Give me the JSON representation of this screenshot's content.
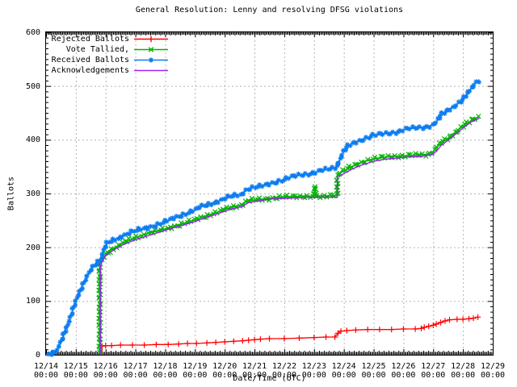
{
  "title": "General Resolution: Lenny and resolving DFSG violations",
  "axes": {
    "x": {
      "label": "Date/Time (UTC)",
      "tick_dates": [
        "12/14",
        "12/15",
        "12/16",
        "12/17",
        "12/18",
        "12/19",
        "12/20",
        "12/21",
        "12/22",
        "12/23",
        "12/24",
        "12/25",
        "12/26",
        "12/27",
        "12/28",
        "12/29"
      ],
      "tick_time": "00:00",
      "min_days": 0,
      "max_days": 15
    },
    "y": {
      "label": "Ballots",
      "ticks": [
        "0",
        "100",
        "200",
        "300",
        "400",
        "500",
        "600"
      ],
      "min": 0,
      "max": 600
    }
  },
  "colors": {
    "background": "#ffffff",
    "axis": "#000000",
    "grid": "#b5b5b5",
    "rejected": "#ff0000",
    "tallied": "#00b400",
    "received": "#0c7cf0",
    "acknowledgements": "#a020f0"
  },
  "legend": [
    {
      "id": "rejected",
      "label": "Rejected Ballots",
      "marker": "plus"
    },
    {
      "id": "tallied",
      "label": "Vote Tallied,",
      "marker": "cross"
    },
    {
      "id": "received",
      "label": "Received Ballots",
      "marker": "star"
    },
    {
      "id": "acknowledgements",
      "label": "Acknowledgements",
      "marker": "none"
    }
  ],
  "chart_data": {
    "type": "line",
    "x_unit": "days since 12/14 00:00 UTC",
    "grid": "dashed, horizontal every 100 ballots, vertical every day",
    "legend_position": "top-left inside plot",
    "series": [
      {
        "id": "rejected",
        "name": "Rejected Ballots",
        "marker": "plus",
        "markers_at_points": true,
        "points": [
          [
            1.88,
            0
          ],
          [
            1.88,
            16
          ],
          [
            2.0,
            17
          ],
          [
            2.2,
            17
          ],
          [
            2.5,
            18
          ],
          [
            2.9,
            18
          ],
          [
            3.3,
            18
          ],
          [
            3.7,
            19
          ],
          [
            4.1,
            19
          ],
          [
            4.45,
            20
          ],
          [
            4.75,
            21
          ],
          [
            5.05,
            21
          ],
          [
            5.4,
            22
          ],
          [
            5.7,
            23
          ],
          [
            6.0,
            24
          ],
          [
            6.3,
            25
          ],
          [
            6.6,
            26
          ],
          [
            6.8,
            27
          ],
          [
            7.0,
            28
          ],
          [
            7.2,
            29
          ],
          [
            7.5,
            30
          ],
          [
            8.0,
            30
          ],
          [
            8.5,
            31
          ],
          [
            9.0,
            32
          ],
          [
            9.4,
            33
          ],
          [
            9.7,
            33
          ],
          [
            9.8,
            40
          ],
          [
            9.9,
            44
          ],
          [
            10.1,
            45
          ],
          [
            10.4,
            46
          ],
          [
            10.8,
            47
          ],
          [
            11.2,
            47
          ],
          [
            11.6,
            47
          ],
          [
            12.0,
            48
          ],
          [
            12.4,
            48
          ],
          [
            12.6,
            49
          ],
          [
            12.7,
            51
          ],
          [
            12.85,
            53
          ],
          [
            13.0,
            55
          ],
          [
            13.1,
            57
          ],
          [
            13.25,
            60
          ],
          [
            13.4,
            63
          ],
          [
            13.55,
            65
          ],
          [
            13.8,
            66
          ],
          [
            14.0,
            66
          ],
          [
            14.2,
            67
          ],
          [
            14.35,
            68
          ],
          [
            14.5,
            70
          ]
        ]
      },
      {
        "id": "tallied",
        "name": "Vote Tallied",
        "marker": "cross",
        "markers_at_points": false,
        "points": [
          [
            1.8,
            0
          ],
          [
            1.8,
            170
          ],
          [
            1.88,
            175
          ],
          [
            1.97,
            183
          ],
          [
            2.07,
            190
          ],
          [
            2.2,
            196
          ],
          [
            2.4,
            202
          ],
          [
            2.6,
            208
          ],
          [
            2.8,
            213
          ],
          [
            3.0,
            218
          ],
          [
            3.2,
            222
          ],
          [
            3.5,
            227
          ],
          [
            3.8,
            231
          ],
          [
            4.0,
            234
          ],
          [
            4.3,
            239
          ],
          [
            4.6,
            244
          ],
          [
            4.9,
            249
          ],
          [
            5.2,
            255
          ],
          [
            5.5,
            261
          ],
          [
            5.8,
            266
          ],
          [
            6.0,
            270
          ],
          [
            6.2,
            274
          ],
          [
            6.4,
            277
          ],
          [
            6.6,
            279
          ],
          [
            6.7,
            285
          ],
          [
            6.9,
            287
          ],
          [
            7.2,
            289
          ],
          [
            7.5,
            291
          ],
          [
            7.8,
            293
          ],
          [
            8.2,
            294
          ],
          [
            8.6,
            295
          ],
          [
            9.0,
            295
          ],
          [
            9.03,
            313
          ],
          [
            9.06,
            295
          ],
          [
            9.4,
            296
          ],
          [
            9.6,
            296
          ],
          [
            9.78,
            296
          ],
          [
            9.78,
            335
          ],
          [
            9.9,
            339
          ],
          [
            10.1,
            345
          ],
          [
            10.3,
            351
          ],
          [
            10.5,
            356
          ],
          [
            10.7,
            360
          ],
          [
            11.0,
            364
          ],
          [
            11.3,
            367
          ],
          [
            11.6,
            369
          ],
          [
            12.0,
            370
          ],
          [
            12.4,
            371
          ],
          [
            12.8,
            373
          ],
          [
            13.0,
            378
          ],
          [
            13.15,
            388
          ],
          [
            13.3,
            395
          ],
          [
            13.5,
            403
          ],
          [
            13.7,
            412
          ],
          [
            13.9,
            421
          ],
          [
            14.1,
            429
          ],
          [
            14.3,
            436
          ],
          [
            14.45,
            441
          ],
          [
            14.55,
            443
          ]
        ]
      },
      {
        "id": "received",
        "name": "Received Ballots",
        "marker": "star",
        "markers_at_points": false,
        "points": [
          [
            0,
            0
          ],
          [
            0.15,
            2
          ],
          [
            0.3,
            6
          ],
          [
            0.45,
            18
          ],
          [
            0.55,
            30
          ],
          [
            0.65,
            45
          ],
          [
            0.75,
            60
          ],
          [
            0.85,
            75
          ],
          [
            1.0,
            100
          ],
          [
            1.15,
            120
          ],
          [
            1.3,
            138
          ],
          [
            1.45,
            152
          ],
          [
            1.6,
            165
          ],
          [
            1.75,
            174
          ],
          [
            1.85,
            180
          ],
          [
            1.95,
            196
          ],
          [
            2.05,
            207
          ],
          [
            2.2,
            212
          ],
          [
            2.4,
            217
          ],
          [
            2.6,
            222
          ],
          [
            2.8,
            226
          ],
          [
            3.0,
            230
          ],
          [
            3.2,
            234
          ],
          [
            3.4,
            237
          ],
          [
            3.7,
            241
          ],
          [
            4.0,
            247
          ],
          [
            4.2,
            252
          ],
          [
            4.5,
            259
          ],
          [
            4.7,
            263
          ],
          [
            5.0,
            269
          ],
          [
            5.2,
            275
          ],
          [
            5.5,
            281
          ],
          [
            5.8,
            286
          ],
          [
            6.0,
            290
          ],
          [
            6.2,
            294
          ],
          [
            6.4,
            297
          ],
          [
            6.6,
            299
          ],
          [
            6.7,
            307
          ],
          [
            6.9,
            310
          ],
          [
            7.2,
            313
          ],
          [
            7.5,
            318
          ],
          [
            7.8,
            323
          ],
          [
            8.0,
            326
          ],
          [
            8.2,
            330
          ],
          [
            8.5,
            334
          ],
          [
            8.8,
            337
          ],
          [
            9.0,
            339
          ],
          [
            9.2,
            342
          ],
          [
            9.5,
            345
          ],
          [
            9.7,
            348
          ],
          [
            9.8,
            355
          ],
          [
            9.9,
            368
          ],
          [
            10.0,
            378
          ],
          [
            10.1,
            386
          ],
          [
            10.25,
            392
          ],
          [
            10.4,
            396
          ],
          [
            10.6,
            400
          ],
          [
            10.8,
            404
          ],
          [
            11.0,
            408
          ],
          [
            11.3,
            411
          ],
          [
            11.6,
            413
          ],
          [
            11.9,
            416
          ],
          [
            12.0,
            419
          ],
          [
            12.3,
            421
          ],
          [
            12.6,
            423
          ],
          [
            12.9,
            426
          ],
          [
            13.0,
            428
          ],
          [
            13.1,
            432
          ],
          [
            13.3,
            448
          ],
          [
            13.5,
            456
          ],
          [
            13.7,
            462
          ],
          [
            13.85,
            468
          ],
          [
            14.0,
            474
          ],
          [
            14.1,
            482
          ],
          [
            14.25,
            494
          ],
          [
            14.4,
            505
          ],
          [
            14.55,
            512
          ]
        ]
      },
      {
        "id": "acknowledgements",
        "name": "Acknowledgements",
        "marker": "none",
        "markers_at_points": false,
        "points": [
          [
            1.83,
            0
          ],
          [
            1.83,
            167
          ],
          [
            2.0,
            185
          ],
          [
            2.3,
            196
          ],
          [
            2.6,
            205
          ],
          [
            3.0,
            214
          ],
          [
            3.4,
            221
          ],
          [
            3.8,
            228
          ],
          [
            4.2,
            235
          ],
          [
            4.6,
            241
          ],
          [
            5.0,
            248
          ],
          [
            5.4,
            256
          ],
          [
            5.8,
            263
          ],
          [
            6.2,
            271
          ],
          [
            6.6,
            276
          ],
          [
            6.8,
            283
          ],
          [
            7.2,
            287
          ],
          [
            7.6,
            290
          ],
          [
            8.0,
            291
          ],
          [
            8.5,
            292
          ],
          [
            9.0,
            293
          ],
          [
            9.5,
            293
          ],
          [
            9.78,
            293
          ],
          [
            9.78,
            331
          ],
          [
            10.0,
            337
          ],
          [
            10.3,
            346
          ],
          [
            10.6,
            353
          ],
          [
            11.0,
            360
          ],
          [
            11.4,
            364
          ],
          [
            11.8,
            366
          ],
          [
            12.2,
            368
          ],
          [
            12.6,
            369
          ],
          [
            13.0,
            373
          ],
          [
            13.15,
            382
          ],
          [
            13.3,
            391
          ],
          [
            13.5,
            399
          ],
          [
            13.7,
            408
          ],
          [
            13.9,
            417
          ],
          [
            14.1,
            426
          ],
          [
            14.3,
            434
          ],
          [
            14.55,
            440
          ]
        ]
      }
    ]
  }
}
